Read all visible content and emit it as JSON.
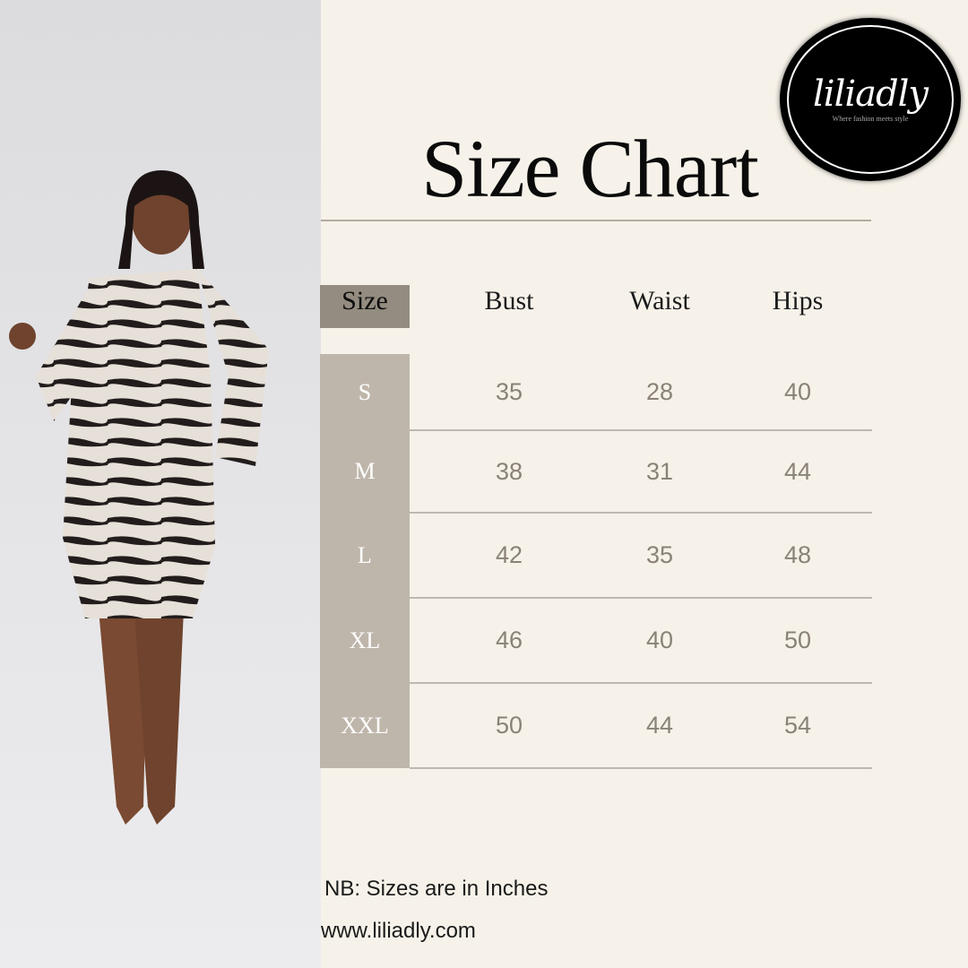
{
  "brand": {
    "logo_text": "liliadly",
    "tagline": "Where fashion meets style"
  },
  "title": "Size Chart",
  "table": {
    "headers": [
      "Size",
      "Bust",
      "Waist",
      "Hips"
    ],
    "rows": [
      {
        "size": "S",
        "bust": "35",
        "waist": "28",
        "hips": "40"
      },
      {
        "size": "M",
        "bust": "38",
        "waist": "31",
        "hips": "44"
      },
      {
        "size": "L",
        "bust": "42",
        "waist": "35",
        "hips": "48"
      },
      {
        "size": "XL",
        "bust": "46",
        "waist": "40",
        "hips": "50"
      },
      {
        "size": "XXL",
        "bust": "50",
        "waist": "44",
        "hips": "54"
      }
    ]
  },
  "note": "NB: Sizes are in Inches",
  "website": "www.liliadly.com",
  "colors": {
    "background": "#f6f2e9",
    "header_size_cell": "#948c80",
    "size_column": "#bfb6ab",
    "value_text": "#8a8178"
  }
}
